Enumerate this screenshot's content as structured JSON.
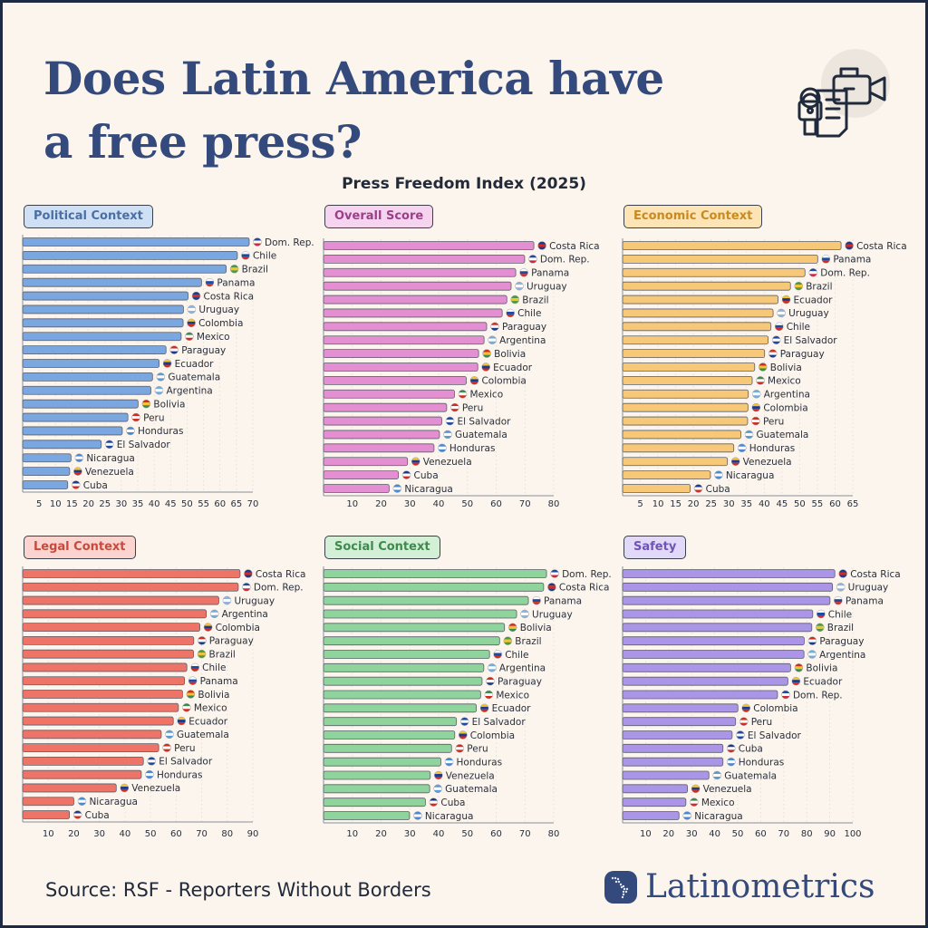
{
  "header": {
    "title_line1": "Does Latin America have",
    "title_line2": "a free press?",
    "subtitle": "Press Freedom Index (2025)"
  },
  "footer": {
    "source": "Source: RSF - Reporters Without Borders",
    "brand": "Latinometrics"
  },
  "icons": {
    "header": "microphone-camera-document-icon",
    "logo": "latin-america-map-icon"
  },
  "flags": {
    "Dom. Rep.": [
      "#1f4aa0",
      "#ffffff",
      "#d0283a"
    ],
    "Chile": [
      "#ffffff",
      "#1f4aa0",
      "#d52b1e"
    ],
    "Brazil": [
      "#4c9a3a",
      "#f4c430",
      "#4c9a3a"
    ],
    "Panama": [
      "#ffffff",
      "#1f4aa0",
      "#d52b1e"
    ],
    "Costa Rica": [
      "#1f3a8a",
      "#d52b1e",
      "#1f3a8a"
    ],
    "Uruguay": [
      "#8fb4e0",
      "#ffffff",
      "#8fb4e0"
    ],
    "Colombia": [
      "#f4c430",
      "#1f3a8a",
      "#d52b1e"
    ],
    "Mexico": [
      "#3a8a4a",
      "#ffffff",
      "#d52b1e"
    ],
    "Paraguay": [
      "#d52b1e",
      "#ffffff",
      "#1f3a8a"
    ],
    "Ecuador": [
      "#f4c430",
      "#1f3a8a",
      "#d52b1e"
    ],
    "Guatemala": [
      "#5b9bd5",
      "#ffffff",
      "#5b9bd5"
    ],
    "Argentina": [
      "#74acdf",
      "#ffffff",
      "#74acdf"
    ],
    "Bolivia": [
      "#d52b1e",
      "#f4c430",
      "#3a8a4a"
    ],
    "Peru": [
      "#d52b1e",
      "#ffffff",
      "#d52b1e"
    ],
    "Honduras": [
      "#4a8ad5",
      "#ffffff",
      "#4a8ad5"
    ],
    "El Salvador": [
      "#1f4aa0",
      "#ffffff",
      "#1f4aa0"
    ],
    "Nicaragua": [
      "#4a8ad5",
      "#ffffff",
      "#4a8ad5"
    ],
    "Venezuela": [
      "#f4c430",
      "#1f3a8a",
      "#d52b1e"
    ],
    "Cuba": [
      "#1f3a8a",
      "#ffffff",
      "#d52b1e"
    ]
  },
  "chart_data": [
    {
      "type": "bar",
      "orientation": "horizontal",
      "title": "Political Context",
      "xlim": [
        0,
        70
      ],
      "ticks": [
        5,
        10,
        15,
        20,
        25,
        30,
        35,
        40,
        45,
        50,
        55,
        60,
        65,
        70
      ],
      "bar_color": "#7aa7e0",
      "label_bg": "#cfe0f5",
      "label_color": "#4a6fa5",
      "categories": [
        "Dom. Rep.",
        "Chile",
        "Brazil",
        "Panama",
        "Costa Rica",
        "Uruguay",
        "Colombia",
        "Mexico",
        "Paraguay",
        "Ecuador",
        "Guatemala",
        "Argentina",
        "Bolivia",
        "Peru",
        "Honduras",
        "El Salvador",
        "Nicaragua",
        "Venezuela",
        "Cuba"
      ],
      "values": [
        68.9,
        65.3,
        61.9,
        54.4,
        50.3,
        48.9,
        48.8,
        48.2,
        43.6,
        41.5,
        39.5,
        39.0,
        35.1,
        32.0,
        30.3,
        23.9,
        14.7,
        14.3,
        13.7
      ]
    },
    {
      "type": "bar",
      "orientation": "horizontal",
      "title": "Overall Score",
      "xlim": [
        0,
        80
      ],
      "ticks": [
        10,
        20,
        30,
        40,
        50,
        60,
        70,
        80
      ],
      "bar_color": "#e48fd2",
      "label_bg": "#f6d3ef",
      "label_color": "#9a3f8a",
      "categories": [
        "Costa Rica",
        "Dom. Rep.",
        "Panama",
        "Uruguay",
        "Brazil",
        "Chile",
        "Paraguay",
        "Argentina",
        "Bolivia",
        "Ecuador",
        "Colombia",
        "Mexico",
        "Peru",
        "El Salvador",
        "Guatemala",
        "Honduras",
        "Venezuela",
        "Cuba",
        "Nicaragua"
      ],
      "values": [
        73.1,
        69.9,
        66.8,
        65.2,
        63.7,
        62.1,
        56.7,
        55.8,
        53.9,
        53.6,
        49.6,
        45.5,
        42.8,
        41.1,
        40.3,
        38.4,
        29.2,
        26.0,
        22.8
      ]
    },
    {
      "type": "bar",
      "orientation": "horizontal",
      "title": "Economic Context",
      "xlim": [
        0,
        65
      ],
      "ticks": [
        5,
        10,
        15,
        20,
        25,
        30,
        35,
        40,
        45,
        50,
        55,
        60,
        65
      ],
      "bar_color": "#f8c879",
      "label_bg": "#fde4b5",
      "label_color": "#c98a1f",
      "categories": [
        "Costa Rica",
        "Panama",
        "Dom. Rep.",
        "Brazil",
        "Ecuador",
        "Uruguay",
        "Chile",
        "El Salvador",
        "Paraguay",
        "Bolivia",
        "Mexico",
        "Argentina",
        "Colombia",
        "Peru",
        "Guatemala",
        "Honduras",
        "Venezuela",
        "Nicaragua",
        "Cuba"
      ],
      "values": [
        61.7,
        55.1,
        51.5,
        47.4,
        43.9,
        42.5,
        41.9,
        41.1,
        40.1,
        37.3,
        36.6,
        35.5,
        35.4,
        35.3,
        33.4,
        31.4,
        29.6,
        24.8,
        19.1
      ]
    },
    {
      "type": "bar",
      "orientation": "horizontal",
      "title": "Legal Context",
      "xlim": [
        0,
        90
      ],
      "ticks": [
        10,
        20,
        30,
        40,
        50,
        60,
        70,
        80,
        90
      ],
      "bar_color": "#ee7468",
      "label_bg": "#fbd4cf",
      "label_color": "#c64a3e",
      "categories": [
        "Costa Rica",
        "Dom. Rep.",
        "Uruguay",
        "Argentina",
        "Colombia",
        "Paraguay",
        "Brazil",
        "Chile",
        "Panama",
        "Bolivia",
        "Mexico",
        "Ecuador",
        "Guatemala",
        "Peru",
        "El Salvador",
        "Honduras",
        "Venezuela",
        "Nicaragua",
        "Cuba"
      ],
      "values": [
        85.0,
        84.3,
        76.7,
        71.8,
        69.3,
        66.9,
        66.8,
        64.2,
        63.3,
        62.5,
        60.9,
        58.9,
        54.2,
        53.2,
        47.2,
        46.4,
        36.6,
        20.0,
        18.3
      ]
    },
    {
      "type": "bar",
      "orientation": "horizontal",
      "title": "Social Context",
      "xlim": [
        0,
        80
      ],
      "ticks": [
        10,
        20,
        30,
        40,
        50,
        60,
        70,
        80
      ],
      "bar_color": "#8fd49c",
      "label_bg": "#d3efd6",
      "label_color": "#3f8a4e",
      "categories": [
        "Dom. Rep.",
        "Costa Rica",
        "Panama",
        "Uruguay",
        "Bolivia",
        "Brazil",
        "Chile",
        "Argentina",
        "Paraguay",
        "Mexico",
        "Ecuador",
        "El Salvador",
        "Colombia",
        "Peru",
        "Honduras",
        "Venezuela",
        "Guatemala",
        "Cuba",
        "Nicaragua"
      ],
      "values": [
        77.5,
        76.5,
        71.2,
        67.1,
        62.9,
        61.2,
        57.7,
        55.7,
        55.1,
        54.6,
        53.1,
        46.2,
        45.6,
        44.5,
        40.8,
        37.1,
        36.9,
        35.4,
        29.9
      ]
    },
    {
      "type": "bar",
      "orientation": "horizontal",
      "title": "Safety",
      "xlim": [
        0,
        100
      ],
      "ticks": [
        10,
        20,
        30,
        40,
        50,
        60,
        70,
        80,
        90,
        100
      ],
      "bar_color": "#ab95e6",
      "label_bg": "#e2d8f8",
      "label_color": "#6e55b5",
      "categories": [
        "Costa Rica",
        "Uruguay",
        "Panama",
        "Chile",
        "Brazil",
        "Paraguay",
        "Argentina",
        "Bolivia",
        "Ecuador",
        "Dom. Rep.",
        "Colombia",
        "Peru",
        "El Salvador",
        "Cuba",
        "Honduras",
        "Guatemala",
        "Venezuela",
        "Mexico",
        "Nicaragua"
      ],
      "values": [
        92.2,
        91.2,
        90.1,
        82.6,
        82.2,
        78.9,
        78.8,
        73.0,
        71.8,
        67.3,
        50.1,
        49.1,
        47.6,
        43.6,
        43.6,
        37.5,
        28.2,
        27.5,
        24.5
      ]
    }
  ]
}
